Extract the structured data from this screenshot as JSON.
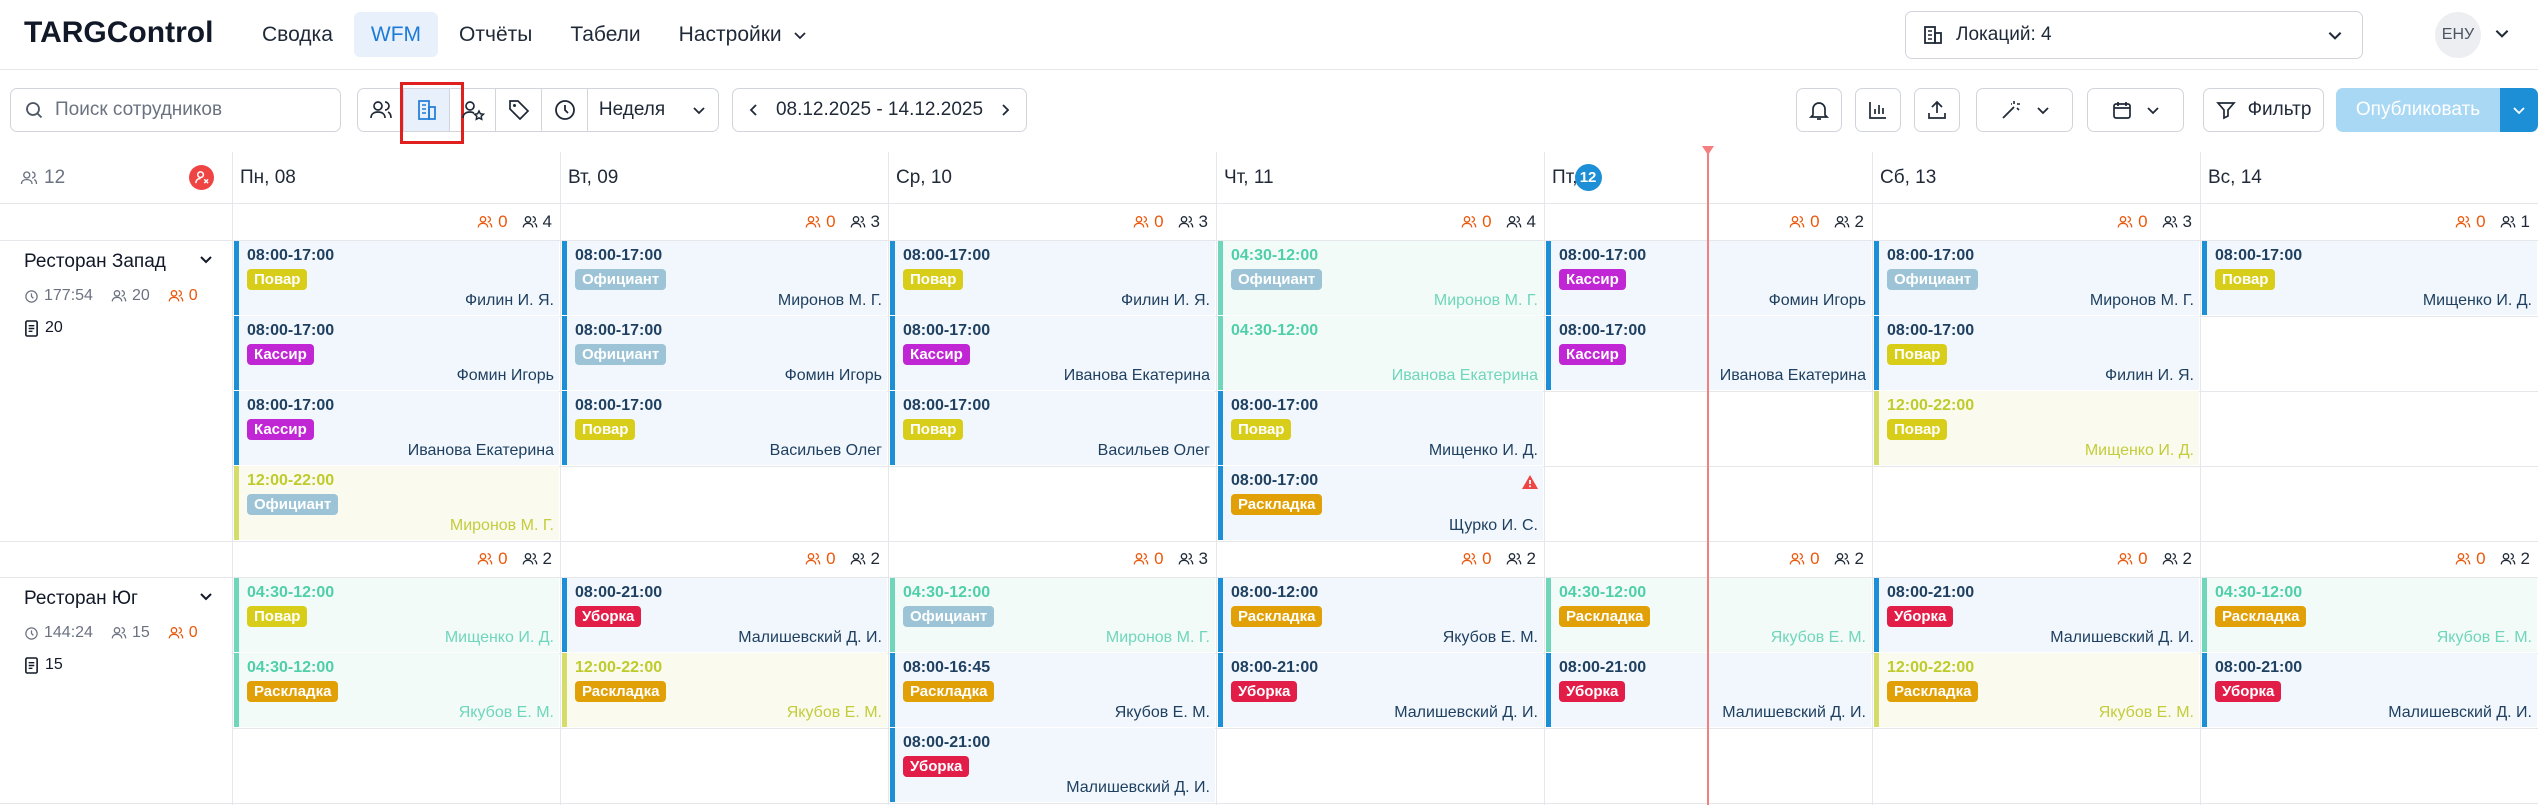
{
  "app": {
    "logo": "TARGControl"
  },
  "nav": [
    {
      "label": "Сводка",
      "active": false
    },
    {
      "label": "WFM",
      "active": true
    },
    {
      "label": "Отчёты",
      "active": false
    },
    {
      "label": "Табели",
      "active": false
    },
    {
      "label": "Настройки",
      "active": false,
      "has_chevron": true
    }
  ],
  "location_select": {
    "label": "Локаций: 4"
  },
  "user": {
    "initials": "ЕНУ"
  },
  "toolbar": {
    "search_placeholder": "Поиск сотрудников",
    "view_buttons": [
      "users-icon",
      "building-icon",
      "user-star-icon",
      "tag-icon",
      "clock-icon"
    ],
    "active_view": "building-icon",
    "period_label": "Неделя",
    "date_range": "08.12.2025 - 14.12.2025",
    "filter_label": "Фильтр",
    "publish_label": "Опубликовать"
  },
  "colors": {
    "accent": "#1d8fd6",
    "orange": "#ea580c",
    "today_line": "#f47f7f"
  },
  "tag_colors": {
    "Повар": "#d8ce1a",
    "Кассир": "#c026d3",
    "Официант": "#9cc4d6",
    "Раскладка": "#e2a007",
    "Уборка": "#e11d48"
  },
  "corner": {
    "employees_count": "12"
  },
  "days": [
    {
      "label": "Пн, 08"
    },
    {
      "label": "Вт, 09"
    },
    {
      "label": "Ср, 10"
    },
    {
      "label": "Чт, 11"
    },
    {
      "label": "Пт,",
      "today_badge": "12"
    },
    {
      "label": "Сб, 13"
    },
    {
      "label": "Вс, 14"
    }
  ],
  "locations": [
    {
      "name": "Ресторан Запад",
      "hours": "177:54",
      "staff": "20",
      "open": "0",
      "docs": "20",
      "day_counts": [
        {
          "o": "0",
          "g": "4"
        },
        {
          "o": "0",
          "g": "3"
        },
        {
          "o": "0",
          "g": "3"
        },
        {
          "o": "0",
          "g": "4"
        },
        {
          "o": "0",
          "g": "2"
        },
        {
          "o": "0",
          "g": "3"
        },
        {
          "o": "0",
          "g": "1"
        }
      ],
      "rows": 4,
      "shifts": [
        {
          "day": 0,
          "row": 0,
          "time": "08:00-17:00",
          "tag": "Повар",
          "name": "Филин И. Я.",
          "style": "blue"
        },
        {
          "day": 0,
          "row": 1,
          "time": "08:00-17:00",
          "tag": "Кассир",
          "name": "Фомин Игорь",
          "style": "blue"
        },
        {
          "day": 0,
          "row": 2,
          "time": "08:00-17:00",
          "tag": "Кассир",
          "name": "Иванова Екатерина",
          "style": "blue"
        },
        {
          "day": 0,
          "row": 3,
          "time": "12:00-22:00",
          "tag": "Официант",
          "name": "Миронов М. Г.",
          "style": "olive"
        },
        {
          "day": 1,
          "row": 0,
          "time": "08:00-17:00",
          "tag": "Официант",
          "name": "Миронов М. Г.",
          "style": "blue"
        },
        {
          "day": 1,
          "row": 1,
          "time": "08:00-17:00",
          "tag": "Официант",
          "name": "Фомин Игорь",
          "style": "blue"
        },
        {
          "day": 1,
          "row": 2,
          "time": "08:00-17:00",
          "tag": "Повар",
          "name": "Васильев Олег",
          "style": "blue"
        },
        {
          "day": 2,
          "row": 0,
          "time": "08:00-17:00",
          "tag": "Повар",
          "name": "Филин И. Я.",
          "style": "blue"
        },
        {
          "day": 2,
          "row": 1,
          "time": "08:00-17:00",
          "tag": "Кассир",
          "name": "Иванова Екатерина",
          "style": "blue"
        },
        {
          "day": 2,
          "row": 2,
          "time": "08:00-17:00",
          "tag": "Повар",
          "name": "Васильев Олег",
          "style": "blue"
        },
        {
          "day": 3,
          "row": 0,
          "time": "04:30-12:00",
          "tag": "Официант",
          "name": "Миронов М. Г.",
          "style": "teal"
        },
        {
          "day": 3,
          "row": 1,
          "time": "04:30-12:00",
          "tag": "",
          "name": "Иванова Екатерина",
          "style": "teal"
        },
        {
          "day": 3,
          "row": 2,
          "time": "08:00-17:00",
          "tag": "Повар",
          "name": "Мищенко И. Д.",
          "style": "blue"
        },
        {
          "day": 3,
          "row": 3,
          "time": "08:00-17:00",
          "tag": "Раскладка",
          "name": "Щурко И. С.",
          "style": "blue",
          "warning": true
        },
        {
          "day": 4,
          "row": 0,
          "time": "08:00-17:00",
          "tag": "Кассир",
          "name": "Фомин Игорь",
          "style": "blue"
        },
        {
          "day": 4,
          "row": 1,
          "time": "08:00-17:00",
          "tag": "Кассир",
          "name": "Иванова Екатерина",
          "style": "blue"
        },
        {
          "day": 5,
          "row": 0,
          "time": "08:00-17:00",
          "tag": "Официант",
          "name": "Миронов М. Г.",
          "style": "blue"
        },
        {
          "day": 5,
          "row": 1,
          "time": "08:00-17:00",
          "tag": "Повар",
          "name": "Филин И. Я.",
          "style": "blue"
        },
        {
          "day": 5,
          "row": 2,
          "time": "12:00-22:00",
          "tag": "Повар",
          "name": "Мищенко И. Д.",
          "style": "olive"
        },
        {
          "day": 6,
          "row": 0,
          "time": "08:00-17:00",
          "tag": "Повар",
          "name": "Мищенко И. Д.",
          "style": "blue"
        }
      ]
    },
    {
      "name": "Ресторан Юг",
      "hours": "144:24",
      "staff": "15",
      "open": "0",
      "docs": "15",
      "day_counts": [
        {
          "o": "0",
          "g": "2"
        },
        {
          "o": "0",
          "g": "2"
        },
        {
          "o": "0",
          "g": "3"
        },
        {
          "o": "0",
          "g": "2"
        },
        {
          "o": "0",
          "g": "2"
        },
        {
          "o": "0",
          "g": "2"
        },
        {
          "o": "0",
          "g": "2"
        }
      ],
      "rows": 3,
      "shifts": [
        {
          "day": 0,
          "row": 0,
          "time": "04:30-12:00",
          "tag": "Повар",
          "name": "Мищенко И. Д.",
          "style": "teal"
        },
        {
          "day": 0,
          "row": 1,
          "time": "04:30-12:00",
          "tag": "Раскладка",
          "name": "Якубов Е. М.",
          "style": "teal"
        },
        {
          "day": 1,
          "row": 0,
          "time": "08:00-21:00",
          "tag": "Уборка",
          "name": "Малишевский Д. И.",
          "style": "blue"
        },
        {
          "day": 1,
          "row": 1,
          "time": "12:00-22:00",
          "tag": "Раскладка",
          "name": "Якубов Е. М.",
          "style": "olive"
        },
        {
          "day": 2,
          "row": 0,
          "time": "04:30-12:00",
          "tag": "Официант",
          "name": "Миронов М. Г.",
          "style": "teal"
        },
        {
          "day": 2,
          "row": 1,
          "time": "08:00-16:45",
          "tag": "Раскладка",
          "name": "Якубов Е. М.",
          "style": "blue"
        },
        {
          "day": 2,
          "row": 2,
          "time": "08:00-21:00",
          "tag": "Уборка",
          "name": "Малишевский Д. И.",
          "style": "blue"
        },
        {
          "day": 3,
          "row": 0,
          "time": "08:00-12:00",
          "tag": "Раскладка",
          "name": "Якубов Е. М.",
          "style": "blue"
        },
        {
          "day": 3,
          "row": 1,
          "time": "08:00-21:00",
          "tag": "Уборка",
          "name": "Малишевский Д. И.",
          "style": "blue"
        },
        {
          "day": 4,
          "row": 0,
          "time": "04:30-12:00",
          "tag": "Раскладка",
          "name": "Якубов Е. М.",
          "style": "teal"
        },
        {
          "day": 4,
          "row": 1,
          "time": "08:00-21:00",
          "tag": "Уборка",
          "name": "Малишевский Д. И.",
          "style": "blue"
        },
        {
          "day": 5,
          "row": 0,
          "time": "08:00-21:00",
          "tag": "Уборка",
          "name": "Малишевский Д. И.",
          "style": "blue"
        },
        {
          "day": 5,
          "row": 1,
          "time": "12:00-22:00",
          "tag": "Раскладка",
          "name": "Якубов Е. М.",
          "style": "olive"
        },
        {
          "day": 6,
          "row": 0,
          "time": "04:30-12:00",
          "tag": "Раскладка",
          "name": "Якубов Е. М.",
          "style": "teal"
        },
        {
          "day": 6,
          "row": 1,
          "time": "08:00-21:00",
          "tag": "Уборка",
          "name": "Малишевский Д. И.",
          "style": "blue"
        }
      ]
    }
  ]
}
